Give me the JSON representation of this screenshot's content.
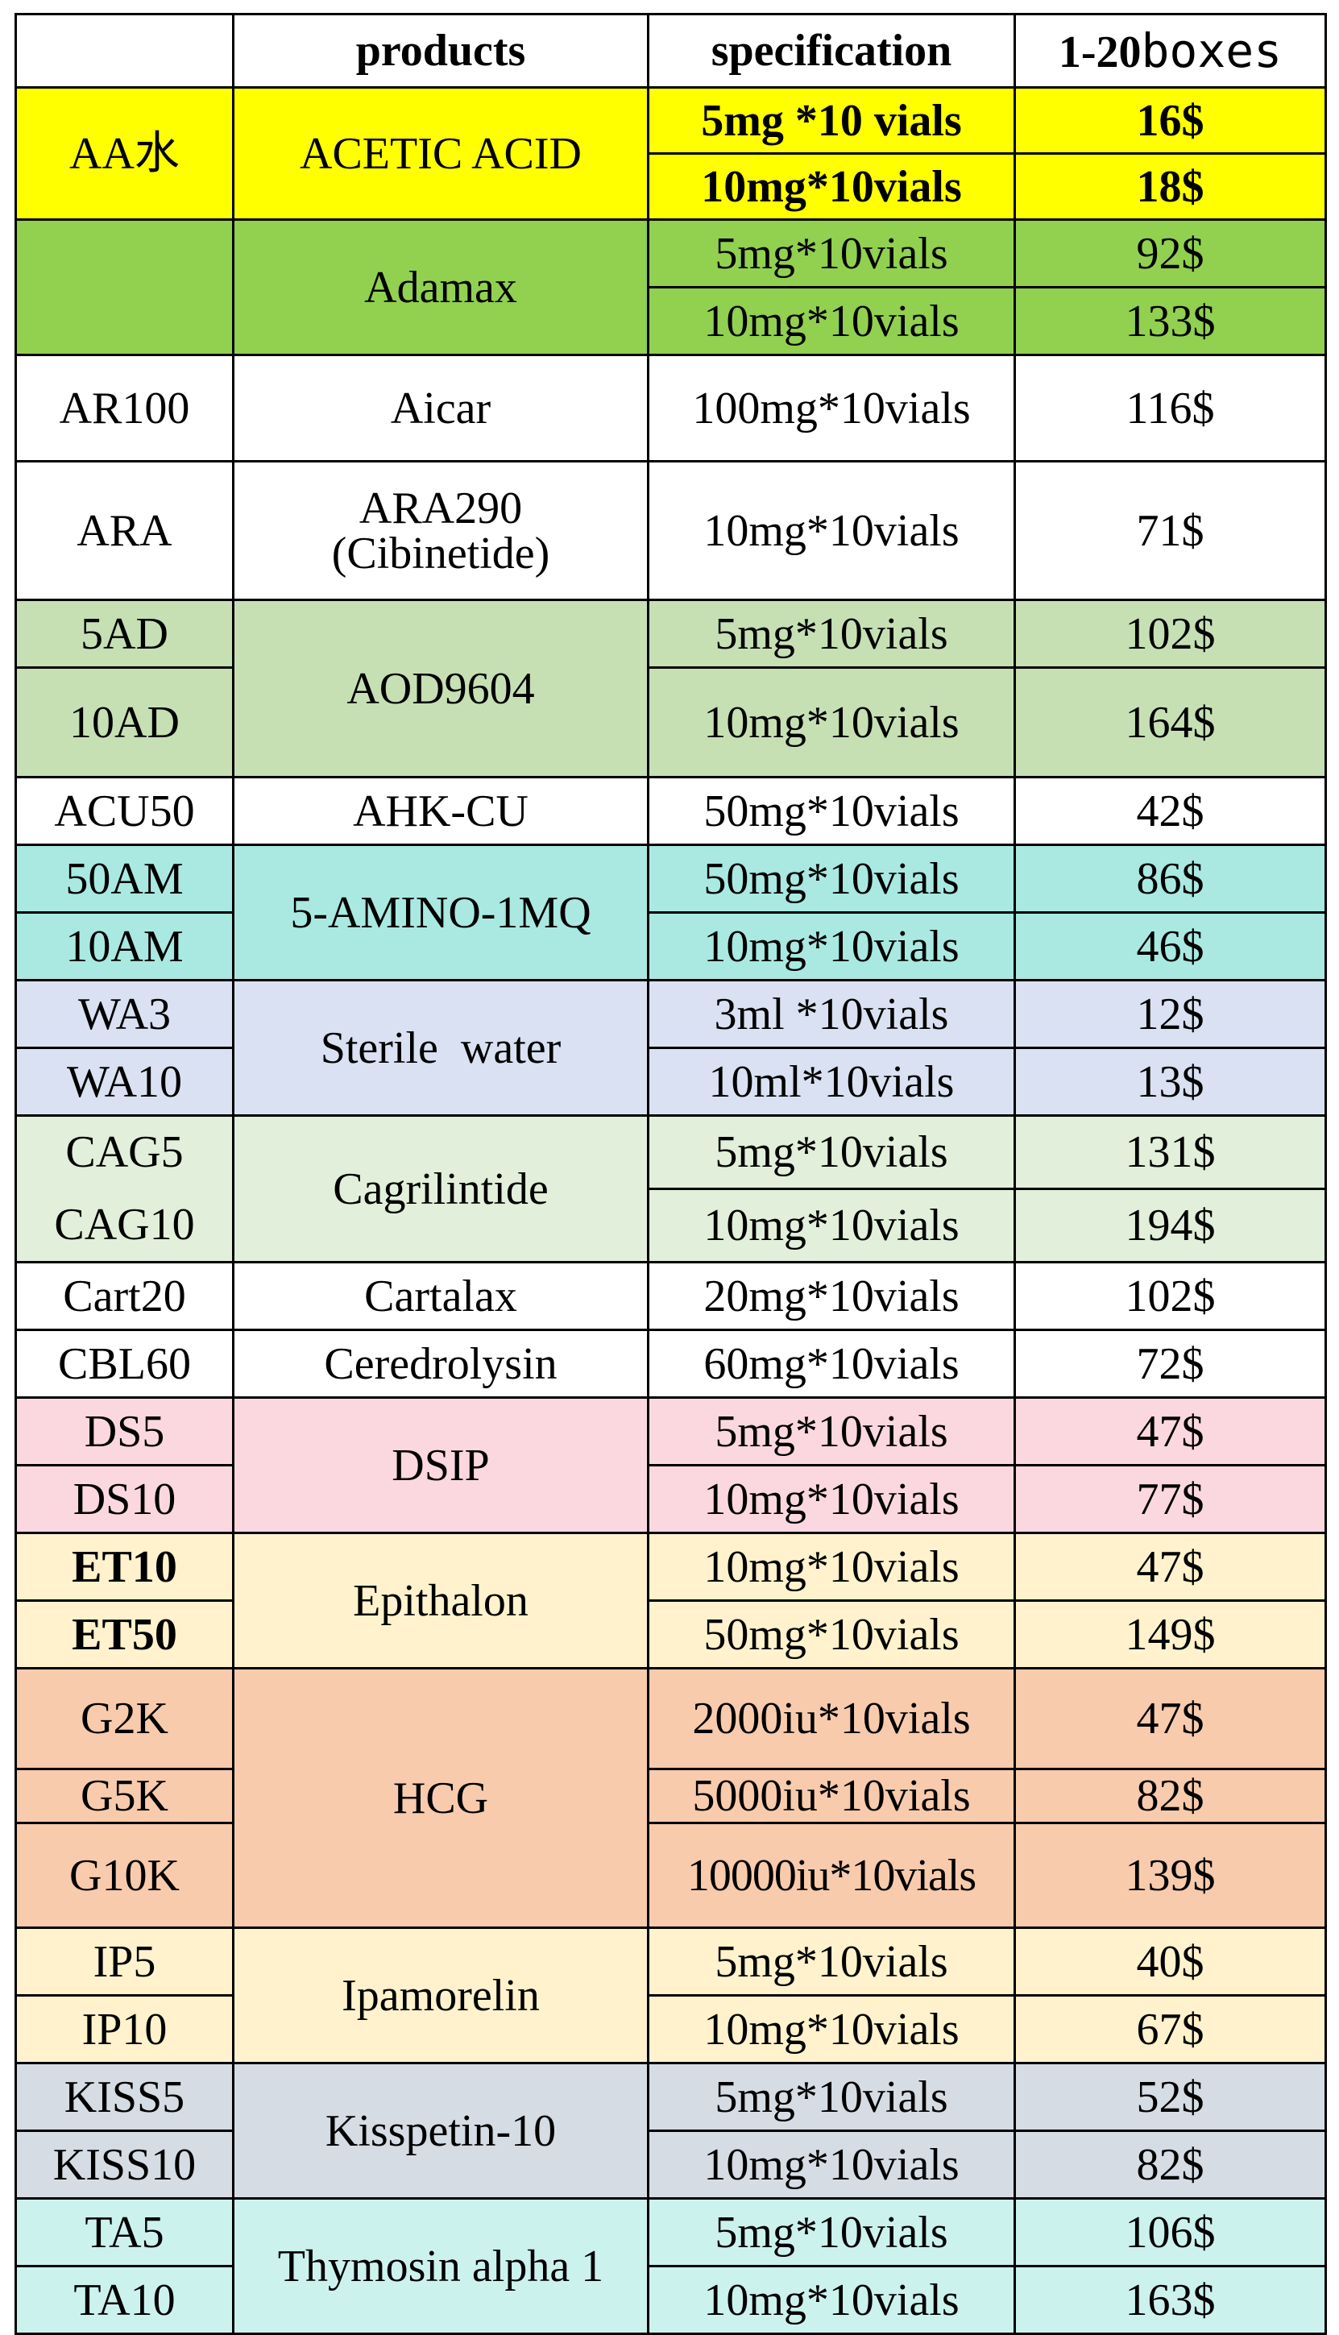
{
  "header": {
    "code": "",
    "products": "products",
    "specification": "specification",
    "price_bold": "1-20",
    "price_rest": "boxes"
  },
  "rows": [
    {
      "code": "AA水",
      "product": "ACETIC  ACID",
      "spec": "5mg *10 vials",
      "price": "16$"
    },
    {
      "spec": "10mg*10vials",
      "price": "18$"
    },
    {
      "code": "",
      "product": "Adamax",
      "spec": "5mg*10vials",
      "price": "92$"
    },
    {
      "spec": "10mg*10vials",
      "price": "133$"
    },
    {
      "code": "AR100",
      "product": "Aicar",
      "spec": "100mg*10vials",
      "price": "116$"
    },
    {
      "code": "ARA",
      "product_line1": "ARA290",
      "product_line2": "(Cibinetide)",
      "spec": "10mg*10vials",
      "price": "71$"
    },
    {
      "code": "5AD",
      "product": "AOD9604",
      "spec": "5mg*10vials",
      "price": "102$"
    },
    {
      "code": "10AD",
      "spec": "10mg*10vials",
      "price": "164$"
    },
    {
      "code": "ACU50",
      "product": "AHK-CU",
      "spec": "50mg*10vials",
      "price": "42$"
    },
    {
      "code": "50AM",
      "product": "5-AMINO-1MQ",
      "spec": "50mg*10vials",
      "price": "86$"
    },
    {
      "code": "10AM",
      "spec": "10mg*10vials",
      "price": "46$"
    },
    {
      "code": "WA3",
      "product": "Sterile  water",
      "spec": "3ml *10vials",
      "price": "12$"
    },
    {
      "code": "WA10",
      "spec": "10ml*10vials",
      "price": "13$"
    },
    {
      "code_line1": "CAG5",
      "code_line2": "CAG10",
      "product": "Cagrilintide",
      "spec": "5mg*10vials",
      "price": "131$"
    },
    {
      "spec": "10mg*10vials",
      "price": "194$"
    },
    {
      "code": "Cart20",
      "product": "Cartalax",
      "spec": "20mg*10vials",
      "price": "102$"
    },
    {
      "code": "CBL60",
      "product": "Ceredrolysin",
      "spec": "60mg*10vials",
      "price": "72$"
    },
    {
      "code": "DS5",
      "product": "DSIP",
      "spec": "5mg*10vials",
      "price": "47$"
    },
    {
      "code": "DS10",
      "spec": "10mg*10vials",
      "price": "77$"
    },
    {
      "code": "ET10",
      "product": "Epithalon",
      "spec": "10mg*10vials",
      "price": "47$"
    },
    {
      "code": "ET50",
      "spec": "50mg*10vials",
      "price": "149$"
    },
    {
      "code": "G2K",
      "product": "HCG",
      "spec": "2000iu*10vials",
      "price": "47$"
    },
    {
      "code": "G5K",
      "spec": "5000iu*10vials",
      "price": "82$"
    },
    {
      "code": "G10K",
      "spec": "10000iu*10vials",
      "price": "139$"
    },
    {
      "code": "IP5",
      "product": "Ipamorelin",
      "spec": "5mg*10vials",
      "price": "40$"
    },
    {
      "code": "IP10",
      "spec": "10mg*10vials",
      "price": "67$"
    },
    {
      "code": "KISS5",
      "product": "Kisspetin-10",
      "spec": "5mg*10vials",
      "price": "52$"
    },
    {
      "code": "KISS10",
      "spec": "10mg*10vials",
      "price": "82$"
    },
    {
      "code": "TA5",
      "product": "Thymosin alpha 1",
      "spec": "5mg*10vials",
      "price": "106$"
    },
    {
      "code": "TA10",
      "spec": "10mg*10vials",
      "price": "163$"
    }
  ],
  "colors": {
    "yellow": "#ffff00",
    "green": "#92d050",
    "light_green": "#c6e0b4",
    "teal": "#a9e9e1",
    "light_blue": "#d9e1f2",
    "pale_green": "#e2efda",
    "pink": "#fbd8e0",
    "cream": "#fff2cc",
    "salmon": "#f8cbad",
    "grey_blue": "#d6dce4",
    "aqua": "#ccf2ee"
  }
}
